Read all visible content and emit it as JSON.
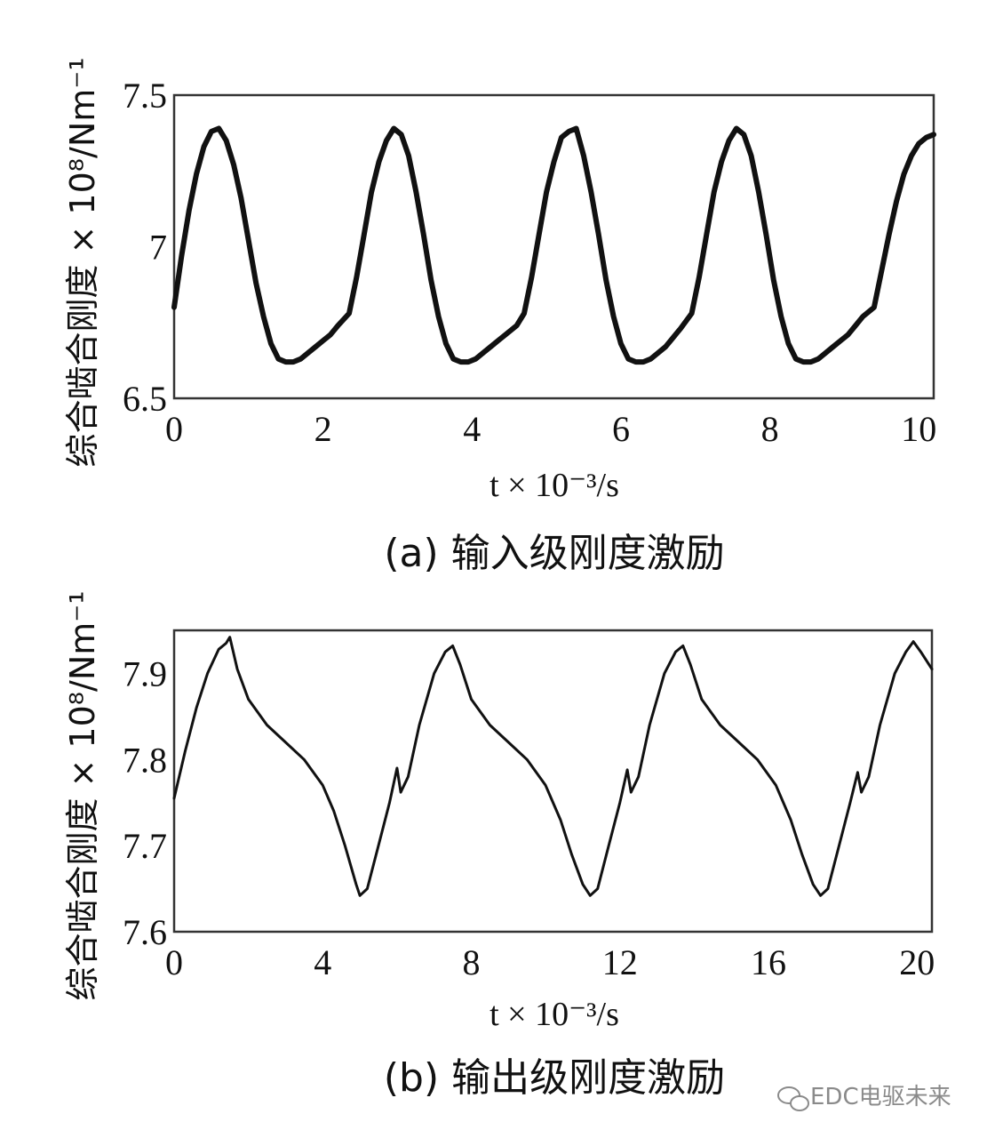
{
  "chart_data": [
    {
      "type": "line",
      "caption": "(a)  输入级刚度激励",
      "ylabel": "综合啮合刚度 × 10⁸/Nm⁻¹",
      "xlabel": "t × 10⁻³/s",
      "xlim": [
        0,
        10.2
      ],
      "ylim": [
        6.5,
        7.5
      ],
      "xticks": [
        "0",
        "2",
        "4",
        "6",
        "8",
        "10"
      ],
      "xtick_values": [
        0,
        2,
        4,
        6,
        8,
        10
      ],
      "yticks": [
        "6.5",
        "7",
        "7.5"
      ],
      "ytick_values": [
        6.5,
        7.0,
        7.5
      ],
      "grid": false,
      "series": [
        {
          "color": "#111111",
          "x": [
            0,
            0.1,
            0.2,
            0.3,
            0.4,
            0.5,
            0.6,
            0.7,
            0.8,
            0.9,
            1.0,
            1.1,
            1.2,
            1.3,
            1.4,
            1.5,
            1.6,
            1.7,
            1.8,
            1.9,
            2.0,
            2.1,
            2.2,
            2.35,
            2.45,
            2.55,
            2.65,
            2.75,
            2.85,
            2.95,
            3.05,
            3.15,
            3.25,
            3.35,
            3.45,
            3.55,
            3.65,
            3.75,
            3.85,
            3.95,
            4.05,
            4.15,
            4.25,
            4.35,
            4.45,
            4.6,
            4.7,
            4.8,
            4.9,
            5.0,
            5.1,
            5.2,
            5.3,
            5.4,
            5.5,
            5.6,
            5.7,
            5.8,
            5.9,
            6.0,
            6.1,
            6.2,
            6.3,
            6.4,
            6.5,
            6.6,
            6.7,
            6.8,
            6.95,
            7.05,
            7.15,
            7.25,
            7.35,
            7.45,
            7.55,
            7.65,
            7.75,
            7.85,
            7.95,
            8.05,
            8.15,
            8.25,
            8.35,
            8.45,
            8.55,
            8.65,
            8.75,
            8.85,
            8.95,
            9.05,
            9.15,
            9.25,
            9.4,
            9.5,
            9.6,
            9.7,
            9.8,
            9.9,
            10.0,
            10.1,
            10.2
          ],
          "y": [
            6.8,
            6.97,
            7.12,
            7.24,
            7.33,
            7.38,
            7.39,
            7.35,
            7.27,
            7.16,
            7.02,
            6.88,
            6.77,
            6.68,
            6.63,
            6.62,
            6.62,
            6.63,
            6.65,
            6.67,
            6.69,
            6.71,
            6.74,
            6.78,
            6.9,
            7.04,
            7.18,
            7.28,
            7.35,
            7.39,
            7.37,
            7.3,
            7.18,
            7.04,
            6.89,
            6.77,
            6.68,
            6.63,
            6.62,
            6.62,
            6.63,
            6.65,
            6.67,
            6.69,
            6.71,
            6.74,
            6.78,
            6.9,
            7.04,
            7.18,
            7.28,
            7.36,
            7.38,
            7.39,
            7.3,
            7.18,
            7.04,
            6.89,
            6.77,
            6.68,
            6.63,
            6.62,
            6.62,
            6.63,
            6.65,
            6.67,
            6.7,
            6.73,
            6.78,
            6.9,
            7.04,
            7.18,
            7.28,
            7.35,
            7.39,
            7.37,
            7.3,
            7.18,
            7.04,
            6.89,
            6.77,
            6.68,
            6.63,
            6.62,
            6.62,
            6.63,
            6.65,
            6.67,
            6.69,
            6.71,
            6.74,
            6.77,
            6.8,
            6.92,
            7.04,
            7.15,
            7.24,
            7.3,
            7.34,
            7.36,
            7.37
          ]
        }
      ]
    },
    {
      "type": "line",
      "caption": "(b)  输出级刚度激励",
      "ylabel": "综合啮合刚度 × 10⁸/Nm⁻¹",
      "xlabel": "t × 10⁻³/s",
      "xlim": [
        0,
        20.4
      ],
      "ylim": [
        7.6,
        7.95
      ],
      "xticks": [
        "0",
        "4",
        "8",
        "12",
        "16",
        "20"
      ],
      "xtick_values": [
        0,
        4,
        8,
        12,
        16,
        20
      ],
      "yticks": [
        "7.6",
        "7.7",
        "7.8",
        "7.9"
      ],
      "ytick_values": [
        7.6,
        7.7,
        7.8,
        7.9
      ],
      "grid": false,
      "series": [
        {
          "color": "#111111",
          "x": [
            0,
            0.3,
            0.6,
            0.9,
            1.2,
            1.4,
            1.5,
            1.7,
            2.0,
            2.5,
            3.0,
            3.5,
            4.0,
            4.3,
            4.6,
            4.9,
            5.0,
            5.2,
            5.5,
            5.8,
            6.0,
            6.1,
            6.3,
            6.6,
            7.0,
            7.3,
            7.5,
            7.7,
            8.0,
            8.5,
            9.0,
            9.5,
            10.0,
            10.4,
            10.7,
            11.0,
            11.2,
            11.4,
            11.7,
            12.0,
            12.2,
            12.3,
            12.5,
            12.8,
            13.2,
            13.5,
            13.7,
            13.9,
            14.2,
            14.7,
            15.2,
            15.7,
            16.2,
            16.6,
            16.9,
            17.2,
            17.4,
            17.6,
            17.9,
            18.2,
            18.4,
            18.5,
            18.7,
            19.0,
            19.4,
            19.7,
            19.9,
            20.1,
            20.4
          ],
          "y": [
            7.755,
            7.81,
            7.86,
            7.9,
            7.928,
            7.935,
            7.942,
            7.905,
            7.87,
            7.84,
            7.82,
            7.8,
            7.77,
            7.74,
            7.7,
            7.655,
            7.642,
            7.65,
            7.7,
            7.75,
            7.79,
            7.762,
            7.78,
            7.84,
            7.9,
            7.925,
            7.932,
            7.91,
            7.87,
            7.84,
            7.82,
            7.8,
            7.77,
            7.73,
            7.69,
            7.655,
            7.642,
            7.65,
            7.7,
            7.75,
            7.788,
            7.762,
            7.78,
            7.84,
            7.9,
            7.925,
            7.932,
            7.91,
            7.87,
            7.84,
            7.82,
            7.8,
            7.77,
            7.73,
            7.69,
            7.655,
            7.642,
            7.65,
            7.7,
            7.75,
            7.785,
            7.762,
            7.78,
            7.84,
            7.9,
            7.925,
            7.937,
            7.925,
            7.905
          ]
        }
      ]
    }
  ],
  "watermark": {
    "icon": "wechat-icon",
    "text": "EDC电驱未来"
  }
}
